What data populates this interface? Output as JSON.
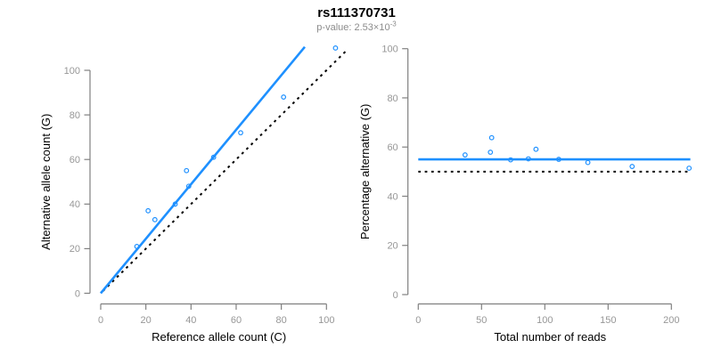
{
  "figure": {
    "title": "rs111370731",
    "subtitle_prefix": "p-value: 2.53×10",
    "subtitle_exponent": "-3"
  },
  "colors": {
    "accent_blue": "#1E90FF",
    "dotted_black": "#000000",
    "axis_gray": "#808080",
    "tick_label_gray": "#979797",
    "subtitle_gray": "#8c8c8c",
    "axis_title_black": "#000000"
  },
  "chart_data": [
    {
      "type": "scatter",
      "name": "allele-count-scatter",
      "xlabel": "Reference allele count (C)",
      "ylabel": "Alternative allele count (G)",
      "xlim": [
        0,
        110
      ],
      "ylim": [
        0,
        110
      ],
      "xticks": [
        0,
        20,
        40,
        60,
        80,
        100
      ],
      "yticks": [
        0,
        20,
        40,
        60,
        80,
        100
      ],
      "grid": false,
      "legend": false,
      "point_color": "#1E90FF",
      "points": [
        [
          16,
          21
        ],
        [
          21,
          37
        ],
        [
          24,
          33
        ],
        [
          33,
          40
        ],
        [
          38,
          55
        ],
        [
          39,
          48
        ],
        [
          50,
          61
        ],
        [
          62,
          72
        ],
        [
          81,
          88
        ],
        [
          104,
          110
        ]
      ],
      "lines": [
        {
          "name": "identity-line",
          "description": "y = x (50% expectation)",
          "style": "dotted",
          "color": "#000000",
          "width": 2,
          "from": [
            1,
            1
          ],
          "to": [
            109,
            109
          ]
        },
        {
          "name": "fit-line",
          "description": "fitted allelic ratio ~55% alternative (slope 1.22)",
          "style": "solid",
          "color": "#1E90FF",
          "width": 2.6,
          "from": [
            0,
            0
          ],
          "to": [
            90.4,
            110.5
          ]
        }
      ]
    },
    {
      "type": "scatter",
      "name": "percentage-scatter",
      "xlabel": "Total number of reads",
      "ylabel": "Percentage alternative (G)",
      "xlim": [
        0,
        215
      ],
      "ylim": [
        0,
        100
      ],
      "xticks": [
        0,
        50,
        100,
        150,
        200
      ],
      "yticks": [
        0,
        20,
        40,
        60,
        80,
        100
      ],
      "grid": false,
      "legend": false,
      "point_color": "#1E90FF",
      "points": [
        [
          37,
          56.8
        ],
        [
          57,
          57.9
        ],
        [
          58,
          63.8
        ],
        [
          73,
          54.8
        ],
        [
          87,
          55.2
        ],
        [
          93,
          59.1
        ],
        [
          111,
          55.0
        ],
        [
          134,
          53.7
        ],
        [
          169,
          52.1
        ],
        [
          214,
          51.4
        ]
      ],
      "lines": [
        {
          "name": "expected-line",
          "description": "expected 50%",
          "style": "dotted",
          "color": "#000000",
          "width": 2,
          "from": [
            0,
            50
          ],
          "to": [
            215,
            50
          ]
        },
        {
          "name": "fit-line",
          "description": "fitted mean percentage ~55%",
          "style": "solid",
          "color": "#1E90FF",
          "width": 2.6,
          "from": [
            0,
            55
          ],
          "to": [
            215,
            55
          ]
        }
      ]
    }
  ]
}
